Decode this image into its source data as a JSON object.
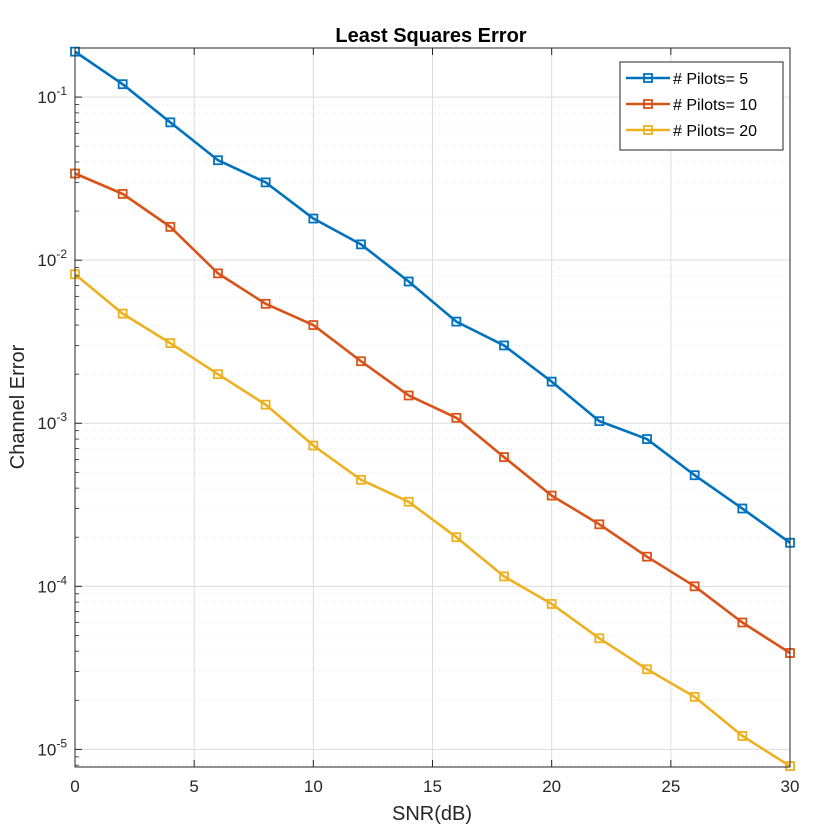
{
  "chart_data": {
    "type": "line",
    "title": "Least Squares Error",
    "xlabel": "SNR(dB)",
    "ylabel": "Channel Error",
    "xlim": [
      0,
      30
    ],
    "ylim": [
      7.8e-06,
      0.2
    ],
    "yscale": "log",
    "grid": true,
    "legend_position": "top-right",
    "x": [
      0,
      2,
      4,
      6,
      8,
      10,
      12,
      14,
      16,
      18,
      20,
      22,
      24,
      26,
      28,
      30
    ],
    "xticks": [
      0,
      5,
      10,
      15,
      20,
      25,
      30
    ],
    "xtick_labels": [
      "0",
      "5",
      "10",
      "15",
      "20",
      "25",
      "30"
    ],
    "yticks": [
      {
        "value": 0.1,
        "base": "10",
        "exp": "-1"
      },
      {
        "value": 0.01,
        "base": "10",
        "exp": "-2"
      },
      {
        "value": 0.001,
        "base": "10",
        "exp": "-3"
      },
      {
        "value": 0.0001,
        "base": "10",
        "exp": "-4"
      },
      {
        "value": 1e-05,
        "base": "10",
        "exp": "-5"
      }
    ],
    "series": [
      {
        "name": "# Pilots= 5",
        "color": "#0072BD",
        "values": [
          0.19,
          0.12,
          0.07,
          0.041,
          0.03,
          0.018,
          0.0125,
          0.0074,
          0.0042,
          0.003,
          0.0018,
          0.00103,
          0.0008,
          0.00048,
          0.0003,
          0.000185
        ]
      },
      {
        "name": "# Pilots= 10",
        "color": "#D95319",
        "values": [
          0.034,
          0.0255,
          0.016,
          0.0083,
          0.0054,
          0.004,
          0.0024,
          0.00148,
          0.00108,
          0.00062,
          0.00036,
          0.00024,
          0.000152,
          0.0001,
          6e-05,
          3.9e-05
        ]
      },
      {
        "name": "# Pilots= 20",
        "color": "#EDB120",
        "values": [
          0.0082,
          0.0047,
          0.0031,
          0.002,
          0.0013,
          0.00073,
          0.00045,
          0.00033,
          0.0002,
          0.000115,
          7.8e-05,
          4.8e-05,
          3.1e-05,
          2.1e-05,
          1.21e-05,
          7.9e-06
        ]
      }
    ]
  }
}
